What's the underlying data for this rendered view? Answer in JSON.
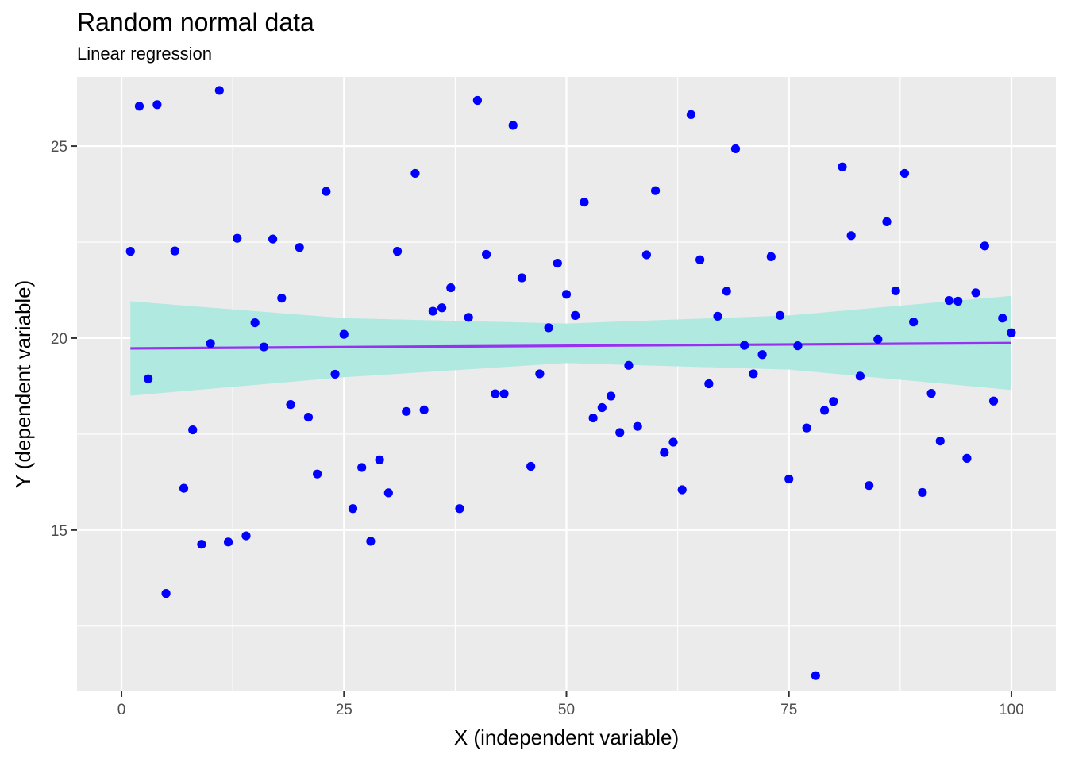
{
  "chart_data": {
    "type": "scatter",
    "title": "Random normal data",
    "subtitle": "Linear regression",
    "xlabel": "X (independent variable)",
    "ylabel": "Y (dependent variable)",
    "xlim": [
      -5,
      105
    ],
    "ylim": [
      10.8,
      26.8
    ],
    "x_ticks": [
      0,
      25,
      50,
      75,
      100
    ],
    "y_ticks": [
      15,
      20,
      25
    ],
    "grid": true,
    "legend": "none",
    "colors": {
      "panel": "#ebebeb",
      "grid": "#ffffff",
      "points": "#0000ff",
      "fit_line": "#9932f0",
      "ribbon": "#b0e9e0",
      "tick_text": "#4d4d4d"
    },
    "regression": {
      "intercept": 19.73,
      "slope": 0.0014,
      "ribbon": [
        {
          "x": 1,
          "lo": 18.5,
          "hi": 20.96
        },
        {
          "x": 25,
          "lo": 18.98,
          "hi": 20.52
        },
        {
          "x": 50,
          "lo": 19.35,
          "hi": 20.38
        },
        {
          "x": 75,
          "lo": 19.18,
          "hi": 20.59
        },
        {
          "x": 100,
          "lo": 18.65,
          "hi": 21.1
        }
      ]
    },
    "series": [
      {
        "points": [
          [
            1,
            22.26
          ],
          [
            2,
            26.04
          ],
          [
            3,
            18.94
          ],
          [
            4,
            26.08
          ],
          [
            5,
            13.35
          ],
          [
            6,
            22.27
          ],
          [
            7,
            16.09
          ],
          [
            8,
            17.61
          ],
          [
            9,
            14.63
          ],
          [
            10,
            19.86
          ],
          [
            11,
            26.45
          ],
          [
            12,
            14.69
          ],
          [
            13,
            22.6
          ],
          [
            14,
            14.85
          ],
          [
            15,
            20.4
          ],
          [
            16,
            19.77
          ],
          [
            17,
            22.58
          ],
          [
            18,
            21.04
          ],
          [
            19,
            18.27
          ],
          [
            20,
            22.36
          ],
          [
            21,
            17.94
          ],
          [
            22,
            16.46
          ],
          [
            23,
            23.82
          ],
          [
            24,
            19.06
          ],
          [
            25,
            20.1
          ],
          [
            26,
            15.56
          ],
          [
            27,
            16.63
          ],
          [
            28,
            14.71
          ],
          [
            29,
            16.83
          ],
          [
            30,
            15.97
          ],
          [
            31,
            22.26
          ],
          [
            32,
            18.09
          ],
          [
            33,
            24.29
          ],
          [
            34,
            18.13
          ],
          [
            35,
            20.7
          ],
          [
            36,
            20.79
          ],
          [
            37,
            21.31
          ],
          [
            38,
            15.56
          ],
          [
            39,
            20.54
          ],
          [
            40,
            26.19
          ],
          [
            41,
            22.18
          ],
          [
            42,
            18.55
          ],
          [
            43,
            18.55
          ],
          [
            44,
            25.54
          ],
          [
            45,
            21.57
          ],
          [
            46,
            16.66
          ],
          [
            47,
            19.07
          ],
          [
            48,
            20.27
          ],
          [
            49,
            21.95
          ],
          [
            50,
            21.14
          ],
          [
            51,
            20.59
          ],
          [
            52,
            23.54
          ],
          [
            53,
            17.92
          ],
          [
            54,
            18.19
          ],
          [
            55,
            18.49
          ],
          [
            56,
            17.54
          ],
          [
            57,
            19.29
          ],
          [
            58,
            17.7
          ],
          [
            59,
            22.17
          ],
          [
            60,
            23.84
          ],
          [
            61,
            17.02
          ],
          [
            62,
            17.29
          ],
          [
            63,
            16.05
          ],
          [
            64,
            25.82
          ],
          [
            65,
            22.04
          ],
          [
            66,
            18.81
          ],
          [
            67,
            20.57
          ],
          [
            68,
            21.22
          ],
          [
            69,
            24.93
          ],
          [
            70,
            19.81
          ],
          [
            71,
            19.07
          ],
          [
            72,
            19.57
          ],
          [
            73,
            22.12
          ],
          [
            74,
            20.59
          ],
          [
            75,
            16.33
          ],
          [
            76,
            19.8
          ],
          [
            77,
            17.66
          ],
          [
            78,
            11.21
          ],
          [
            79,
            18.12
          ],
          [
            80,
            18.35
          ],
          [
            81,
            24.46
          ],
          [
            82,
            22.67
          ],
          [
            83,
            19.01
          ],
          [
            84,
            16.16
          ],
          [
            85,
            19.97
          ],
          [
            86,
            23.03
          ],
          [
            87,
            21.23
          ],
          [
            88,
            24.29
          ],
          [
            89,
            20.42
          ],
          [
            90,
            15.98
          ],
          [
            91,
            18.56
          ],
          [
            92,
            17.32
          ],
          [
            93,
            20.98
          ],
          [
            94,
            20.96
          ],
          [
            95,
            16.87
          ],
          [
            96,
            21.18
          ],
          [
            97,
            22.4
          ],
          [
            98,
            18.36
          ],
          [
            99,
            20.52
          ],
          [
            100,
            20.14
          ]
        ]
      }
    ]
  }
}
